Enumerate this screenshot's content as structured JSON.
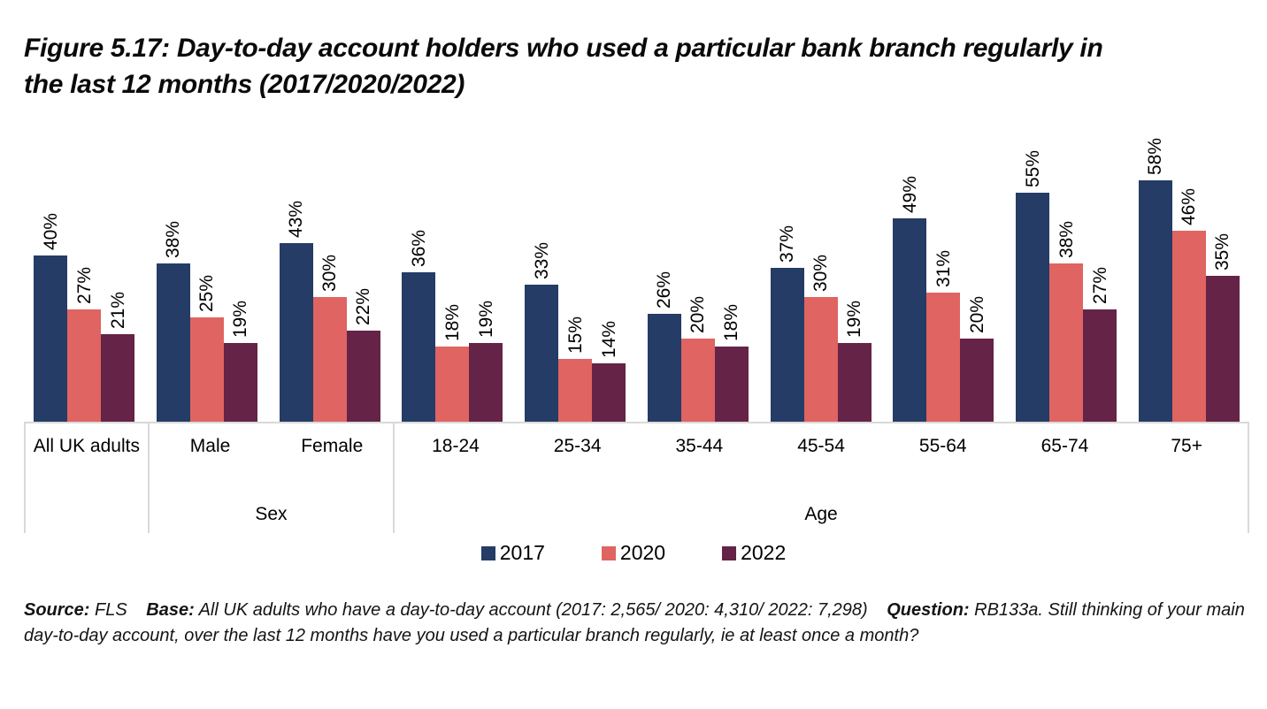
{
  "title": "Figure 5.17: Day-to-day account holders who used a particular bank branch regularly in the last 12 months (2017/2020/2022)",
  "chart_data": {
    "type": "bar",
    "title": "Figure 5.17: Day-to-day account holders who used a particular bank branch regularly in the last 12 months (2017/2020/2022)",
    "categories": [
      "All UK adults",
      "Male",
      "Female",
      "18-24",
      "25-34",
      "35-44",
      "45-54",
      "55-64",
      "65-74",
      "75+"
    ],
    "sections": [
      {
        "label": "",
        "span": 1,
        "categories": [
          "All UK adults"
        ]
      },
      {
        "label": "Sex",
        "span": 2,
        "categories": [
          "Male",
          "Female"
        ]
      },
      {
        "label": "Age",
        "span": 7,
        "categories": [
          "18-24",
          "25-34",
          "35-44",
          "45-54",
          "55-64",
          "65-74",
          "75+"
        ]
      }
    ],
    "series": [
      {
        "name": "2017",
        "color": "#243C66",
        "values": [
          40,
          38,
          43,
          36,
          33,
          26,
          37,
          49,
          55,
          58
        ]
      },
      {
        "name": "2020",
        "color": "#DF6462",
        "values": [
          27,
          25,
          30,
          18,
          15,
          20,
          30,
          31,
          38,
          46
        ]
      },
      {
        "name": "2022",
        "color": "#652347",
        "values": [
          21,
          19,
          22,
          19,
          14,
          18,
          19,
          20,
          27,
          35
        ]
      }
    ],
    "value_suffix": "%",
    "data_labels": "rotated-90-above-bars",
    "ylim": [
      0,
      60
    ],
    "grid": "off",
    "axis_line_color": "#D9D9D9",
    "legend_position": "bottom",
    "xlabel": "",
    "ylabel": ""
  },
  "footnote": {
    "source_label": "Source:",
    "source_value": "FLS",
    "base_label": "Base:",
    "base_value": "All UK adults who have a day-to-day account (2017: 2,565/ 2020: 4,310/ 2022: 7,298)",
    "question_label": "Question:",
    "question_value": "RB133a. Still thinking of your main day-to-day account, over the last 12 months have you used a particular branch regularly, ie at least once a month?"
  }
}
